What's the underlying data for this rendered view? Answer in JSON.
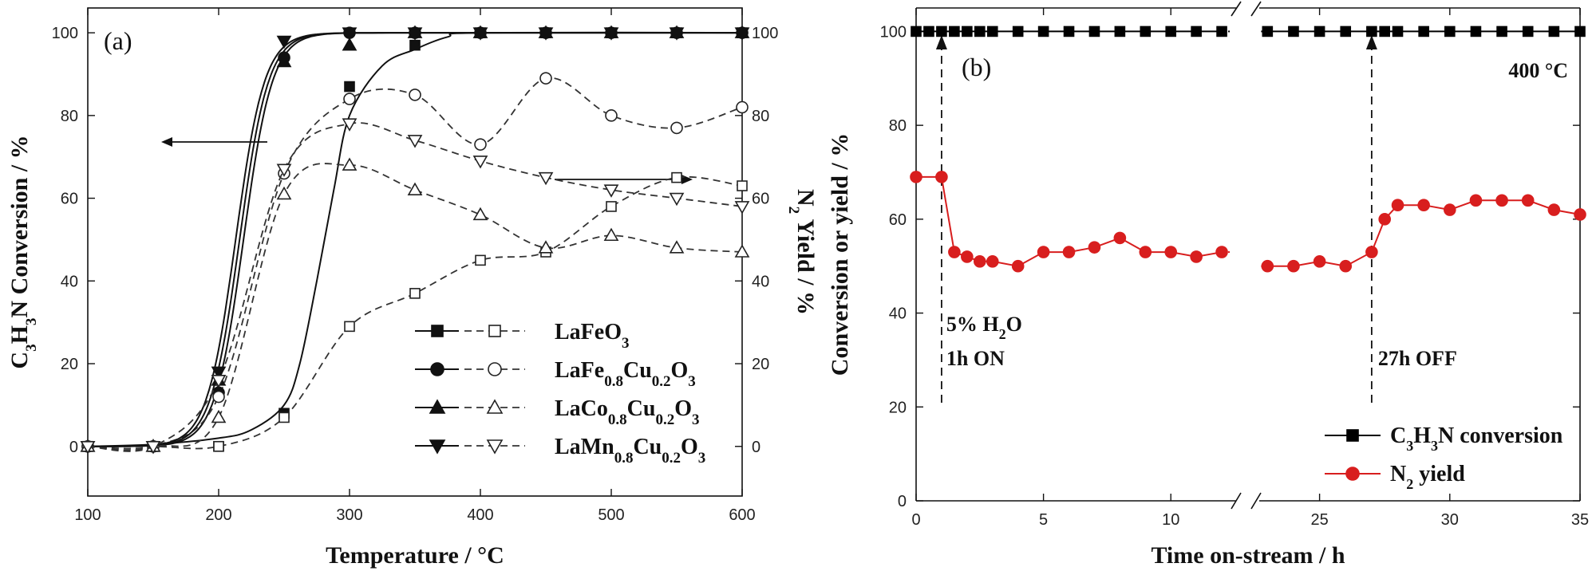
{
  "chart_data": [
    {
      "type": "line",
      "panel_label": "(a)",
      "xlabel_main": "Temperature / ",
      "xlabel_unit": "°C",
      "ylabel_left_parts": [
        "C",
        "3",
        "H",
        "3",
        "N Conversion / %"
      ],
      "ylabel_right_parts": [
        "N",
        "2",
        " Yield / %"
      ],
      "xlim": [
        100,
        600
      ],
      "ylim": [
        -12,
        106
      ],
      "xticks": [
        100,
        200,
        300,
        400,
        500,
        600
      ],
      "yticks": [
        0,
        20,
        40,
        60,
        80,
        100
      ],
      "grid": false,
      "legend_position": "bottom-right",
      "series": [
        {
          "name_parts": [
            "LaFeO",
            "3",
            ""
          ],
          "marker": "square",
          "conversion": [
            [
              100,
              0
            ],
            [
              150,
              0
            ],
            [
              200,
              0
            ],
            [
              250,
              8
            ],
            [
              300,
              87
            ],
            [
              350,
              97
            ],
            [
              400,
              100
            ],
            [
              450,
              100
            ],
            [
              500,
              100
            ],
            [
              550,
              100
            ],
            [
              600,
              100
            ]
          ],
          "conversion_fit": [
            [
              100,
              0
            ],
            [
              150,
              0.5
            ],
            [
              200,
              2
            ],
            [
              225,
              4
            ],
            [
              250,
              10
            ],
            [
              262,
              20
            ],
            [
              275,
              40
            ],
            [
              288,
              62
            ],
            [
              300,
              80
            ],
            [
              325,
              92
            ],
            [
              350,
              96
            ],
            [
              375,
              99
            ],
            [
              400,
              100
            ],
            [
              600,
              100
            ]
          ],
          "yield": [
            [
              100,
              0
            ],
            [
              150,
              0
            ],
            [
              200,
              0
            ],
            [
              250,
              7
            ],
            [
              300,
              29
            ],
            [
              350,
              37
            ],
            [
              400,
              45
            ],
            [
              450,
              47
            ],
            [
              500,
              58
            ],
            [
              550,
              65
            ],
            [
              600,
              63
            ]
          ]
        },
        {
          "name_parts": [
            "LaFe",
            "0.8",
            "Cu",
            "0.2",
            "O",
            "3"
          ],
          "marker": "circle",
          "conversion": [
            [
              100,
              0
            ],
            [
              150,
              0
            ],
            [
              200,
              13
            ],
            [
              250,
              94
            ],
            [
              300,
              100
            ],
            [
              350,
              100
            ],
            [
              400,
              100
            ],
            [
              450,
              100
            ],
            [
              500,
              100
            ],
            [
              550,
              100
            ],
            [
              600,
              100
            ]
          ],
          "yield": [
            [
              100,
              0
            ],
            [
              150,
              0
            ],
            [
              200,
              12
            ],
            [
              250,
              66
            ],
            [
              300,
              84
            ],
            [
              350,
              85
            ],
            [
              400,
              73
            ],
            [
              450,
              89
            ],
            [
              500,
              80
            ],
            [
              550,
              77
            ],
            [
              600,
              82
            ]
          ]
        },
        {
          "name_parts": [
            "LaCo",
            "0.8",
            "Cu",
            "0.2",
            "O",
            "3"
          ],
          "marker": "triangle-up",
          "conversion": [
            [
              100,
              0
            ],
            [
              150,
              0
            ],
            [
              200,
              16
            ],
            [
              250,
              93
            ],
            [
              300,
              97
            ],
            [
              350,
              100
            ],
            [
              400,
              100
            ],
            [
              450,
              100
            ],
            [
              500,
              100
            ],
            [
              550,
              100
            ],
            [
              600,
              100
            ]
          ],
          "yield": [
            [
              100,
              0
            ],
            [
              150,
              0
            ],
            [
              200,
              7
            ],
            [
              250,
              61
            ],
            [
              300,
              68
            ],
            [
              350,
              62
            ],
            [
              400,
              56
            ],
            [
              450,
              48
            ],
            [
              500,
              51
            ],
            [
              550,
              48
            ],
            [
              600,
              47
            ]
          ]
        },
        {
          "name_parts": [
            "LaMn",
            "0.8",
            "Cu",
            "0.2",
            "O",
            "3"
          ],
          "marker": "triangle-down",
          "conversion": [
            [
              100,
              0
            ],
            [
              150,
              0
            ],
            [
              200,
              18
            ],
            [
              250,
              98
            ],
            [
              300,
              100
            ],
            [
              350,
              100
            ],
            [
              400,
              100
            ],
            [
              450,
              100
            ],
            [
              500,
              100
            ],
            [
              550,
              100
            ],
            [
              600,
              100
            ]
          ],
          "yield": [
            [
              100,
              0
            ],
            [
              150,
              0
            ],
            [
              200,
              16
            ],
            [
              250,
              67
            ],
            [
              300,
              78
            ],
            [
              350,
              74
            ],
            [
              400,
              69
            ],
            [
              450,
              65
            ],
            [
              500,
              62
            ],
            [
              550,
              60
            ],
            [
              600,
              58
            ]
          ]
        }
      ]
    },
    {
      "type": "line",
      "panel_label": "(b)",
      "xlabel": "Time on-stream / h",
      "ylabel": "Conversion or yield / %",
      "xlim": [
        0,
        35
      ],
      "ylim": [
        0,
        105
      ],
      "yticks": [
        0,
        20,
        40,
        60,
        80,
        100
      ],
      "xticks_left": [
        0,
        5,
        10
      ],
      "xticks_right": [
        25,
        30,
        35
      ],
      "axis_break": true,
      "temperature_label": "400 °C",
      "annotations": {
        "water_on": {
          "x": 1,
          "line1_parts": [
            "5% H",
            "2",
            "O"
          ],
          "line2": "1h ON"
        },
        "water_off": {
          "x": 27,
          "line1": "27h OFF"
        }
      },
      "legend_position": "bottom-right",
      "series": [
        {
          "name_parts": [
            "C",
            "3",
            "H",
            "3",
            "N conversion"
          ],
          "marker": "square",
          "color": "#000000",
          "segments": [
            [
              [
                0,
                100
              ],
              [
                0.5,
                100
              ],
              [
                1,
                100
              ],
              [
                1.5,
                100
              ],
              [
                2,
                100
              ],
              [
                2.5,
                100
              ],
              [
                3,
                100
              ],
              [
                4,
                100
              ],
              [
                5,
                100
              ],
              [
                6,
                100
              ],
              [
                7,
                100
              ],
              [
                8,
                100
              ],
              [
                9,
                100
              ],
              [
                10,
                100
              ],
              [
                11,
                100
              ],
              [
                12,
                100
              ]
            ],
            [
              [
                23,
                100
              ],
              [
                24,
                100
              ],
              [
                25,
                100
              ],
              [
                26,
                100
              ],
              [
                27,
                100
              ],
              [
                27.5,
                100
              ],
              [
                28,
                100
              ],
              [
                29,
                100
              ],
              [
                30,
                100
              ],
              [
                31,
                100
              ],
              [
                32,
                100
              ],
              [
                33,
                100
              ],
              [
                34,
                100
              ],
              [
                35,
                100
              ]
            ]
          ]
        },
        {
          "name_parts": [
            "N",
            "2",
            " yield"
          ],
          "marker": "circle",
          "color": "#d81e1e",
          "segments": [
            [
              [
                0,
                69
              ],
              [
                1,
                69
              ],
              [
                1.5,
                53
              ],
              [
                2,
                52
              ],
              [
                2.5,
                51
              ],
              [
                3,
                51
              ],
              [
                4,
                50
              ],
              [
                5,
                53
              ],
              [
                6,
                53
              ],
              [
                7,
                54
              ],
              [
                8,
                56
              ],
              [
                9,
                53
              ],
              [
                10,
                53
              ],
              [
                11,
                52
              ],
              [
                12,
                53
              ]
            ],
            [
              [
                23,
                50
              ],
              [
                24,
                50
              ],
              [
                25,
                51
              ],
              [
                26,
                50
              ],
              [
                27,
                53
              ],
              [
                27.5,
                60
              ],
              [
                28,
                63
              ],
              [
                29,
                63
              ],
              [
                30,
                62
              ],
              [
                31,
                64
              ],
              [
                32,
                64
              ],
              [
                33,
                64
              ],
              [
                34,
                62
              ],
              [
                35,
                61
              ]
            ]
          ]
        }
      ]
    }
  ]
}
